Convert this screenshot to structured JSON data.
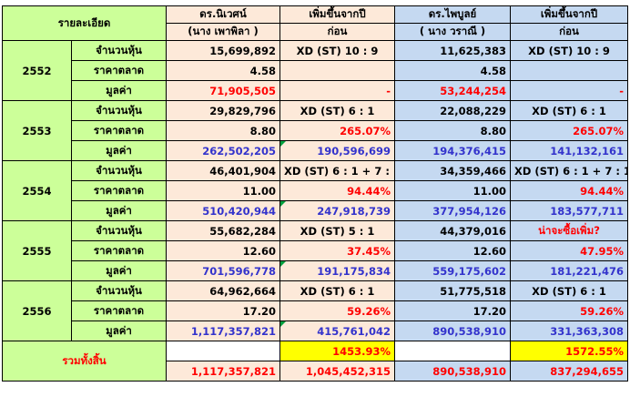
{
  "header": {
    "detail": "รายละเอียด",
    "col1_line1": "ดร.นิเวศน์",
    "col1_line2": "(นาง เพาพิลา )",
    "col2_line1": "เพิ่มขึ้นจากปี",
    "col2_line2": "ก่อน",
    "col3_line1": "ดร.ไพบูลย์",
    "col3_line2": "( นาง วราณี )",
    "col4_line1": "เพิ่มขึ้นจากปี",
    "col4_line2": "ก่อน"
  },
  "row_labels": {
    "shares": "จำนวนหุ้น",
    "price": "ราคาตลาด",
    "value": "มูลค่า"
  },
  "years": [
    {
      "year": "2552",
      "shares": [
        "15,699,892",
        "XD (ST) 10 : 9",
        "11,625,383",
        "XD (ST) 10 : 9"
      ],
      "price": [
        "4.58",
        "",
        "4.58",
        ""
      ],
      "value": [
        "71,905,505",
        "-",
        "53,244,254",
        "-"
      ]
    },
    {
      "year": "2553",
      "shares": [
        "29,829,796",
        "XD (ST) 6 : 1",
        "22,088,229",
        "XD (ST) 6 : 1"
      ],
      "price": [
        "8.80",
        "265.07%",
        "8.80",
        "265.07%"
      ],
      "value": [
        "262,502,205",
        "190,596,699",
        "194,376,415",
        "141,132,161"
      ]
    },
    {
      "year": "2554",
      "shares": [
        "46,401,904",
        "XD (ST) 6 : 1 + 7 : 1",
        "34,359,466",
        "XD (ST) 6 : 1 + 7 : 1"
      ],
      "price": [
        "11.00",
        "94.44%",
        "11.00",
        "94.44%"
      ],
      "value": [
        "510,420,944",
        "247,918,739",
        "377,954,126",
        "183,577,711"
      ]
    },
    {
      "year": "2555",
      "shares": [
        "55,682,284",
        "XD (ST) 5 : 1",
        "44,379,016",
        "น่าจะซื้อเพิ่ม?"
      ],
      "price": [
        "12.60",
        "37.45%",
        "12.60",
        "47.95%"
      ],
      "value": [
        "701,596,778",
        "191,175,834",
        "559,175,602",
        "181,221,476"
      ]
    },
    {
      "year": "2556",
      "shares": [
        "64,962,664",
        "XD (ST) 6 : 1",
        "51,775,518",
        "XD (ST) 6 : 1"
      ],
      "price": [
        "17.20",
        "59.26%",
        "17.20",
        "59.26%"
      ],
      "value": [
        "1,117,357,821",
        "415,761,042",
        "890,538,910",
        "331,363,308"
      ]
    }
  ],
  "total": {
    "label": "รวมทั้งสิ้น",
    "percent_col2": "1453.93%",
    "percent_col4": "1572.55%",
    "values": [
      "1,117,357,821",
      "1,045,452,315",
      "890,538,910",
      "837,294,655"
    ]
  },
  "colors": {
    "green_fill": "#ccff99",
    "peach_fill": "#fde9d9",
    "blue_fill": "#c5d9f1",
    "highlight": "#ffff00",
    "red_text": "#ff0000",
    "blue_text": "#3333cc"
  }
}
